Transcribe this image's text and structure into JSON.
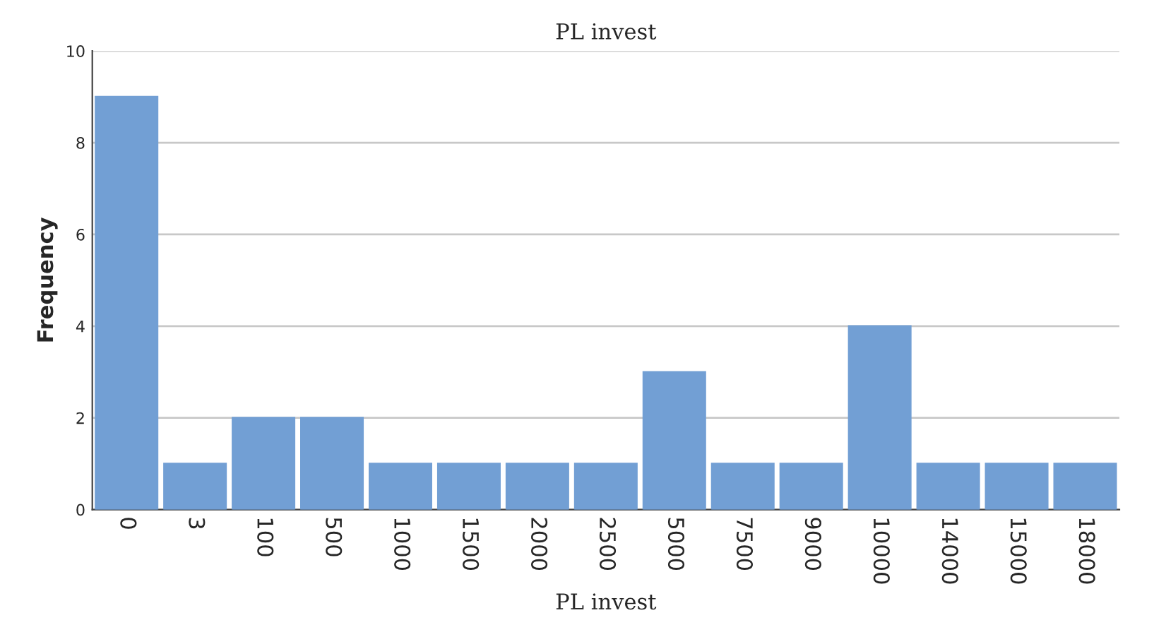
{
  "chart_data": {
    "type": "bar",
    "title": "PL invest",
    "xlabel": "PL invest",
    "ylabel": "Frequency",
    "categories": [
      "0",
      "3",
      "100",
      "500",
      "1000",
      "1500",
      "2000",
      "2500",
      "5000",
      "7500",
      "9000",
      "10000",
      "14000",
      "15000",
      "18000"
    ],
    "values": [
      9,
      1,
      2,
      2,
      1,
      1,
      1,
      1,
      3,
      1,
      1,
      4,
      1,
      1,
      1
    ],
    "color": "#729fd4",
    "ylim": [
      0,
      10
    ],
    "yticks": [
      0,
      2,
      4,
      6,
      8,
      10
    ],
    "grid": "y"
  }
}
